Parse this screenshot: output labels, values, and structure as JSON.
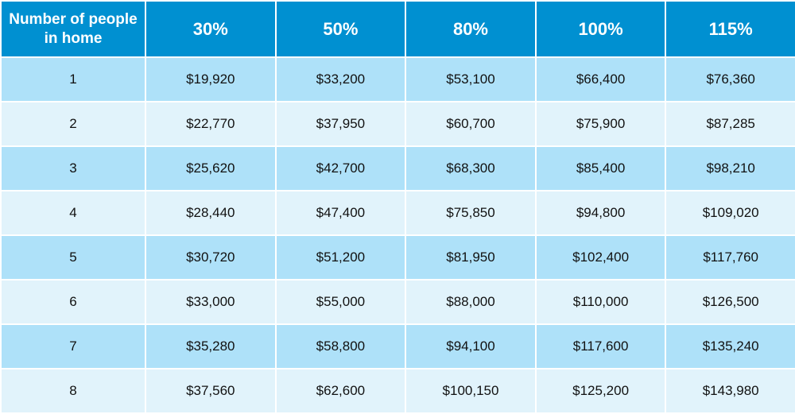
{
  "chart_data": {
    "type": "table",
    "columns": [
      "Number of people in home",
      "30%",
      "50%",
      "80%",
      "100%",
      "115%"
    ],
    "rows": [
      [
        "1",
        "$19,920",
        "$33,200",
        "$53,100",
        "$66,400",
        "$76,360"
      ],
      [
        "2",
        "$22,770",
        "$37,950",
        "$60,700",
        "$75,900",
        "$87,285"
      ],
      [
        "3",
        "$25,620",
        "$42,700",
        "$68,300",
        "$85,400",
        "$98,210"
      ],
      [
        "4",
        "$28,440",
        "$47,400",
        "$75,850",
        "$94,800",
        "$109,020"
      ],
      [
        "5",
        "$30,720",
        "$51,200",
        "$81,950",
        "$102,400",
        "$117,760"
      ],
      [
        "6",
        "$33,000",
        "$55,000",
        "$88,000",
        "$110,000",
        "$126,500"
      ],
      [
        "7",
        "$35,280",
        "$58,800",
        "$94,100",
        "$117,600",
        "$135,240"
      ],
      [
        "8",
        "$37,560",
        "$62,600",
        "$100,150",
        "$125,200",
        "$143,980"
      ]
    ]
  },
  "colors": {
    "header_bg": "#0090d1",
    "header_text": "#ffffff",
    "row_odd_bg": "#aee1f9",
    "row_even_bg": "#e1f3fb"
  }
}
